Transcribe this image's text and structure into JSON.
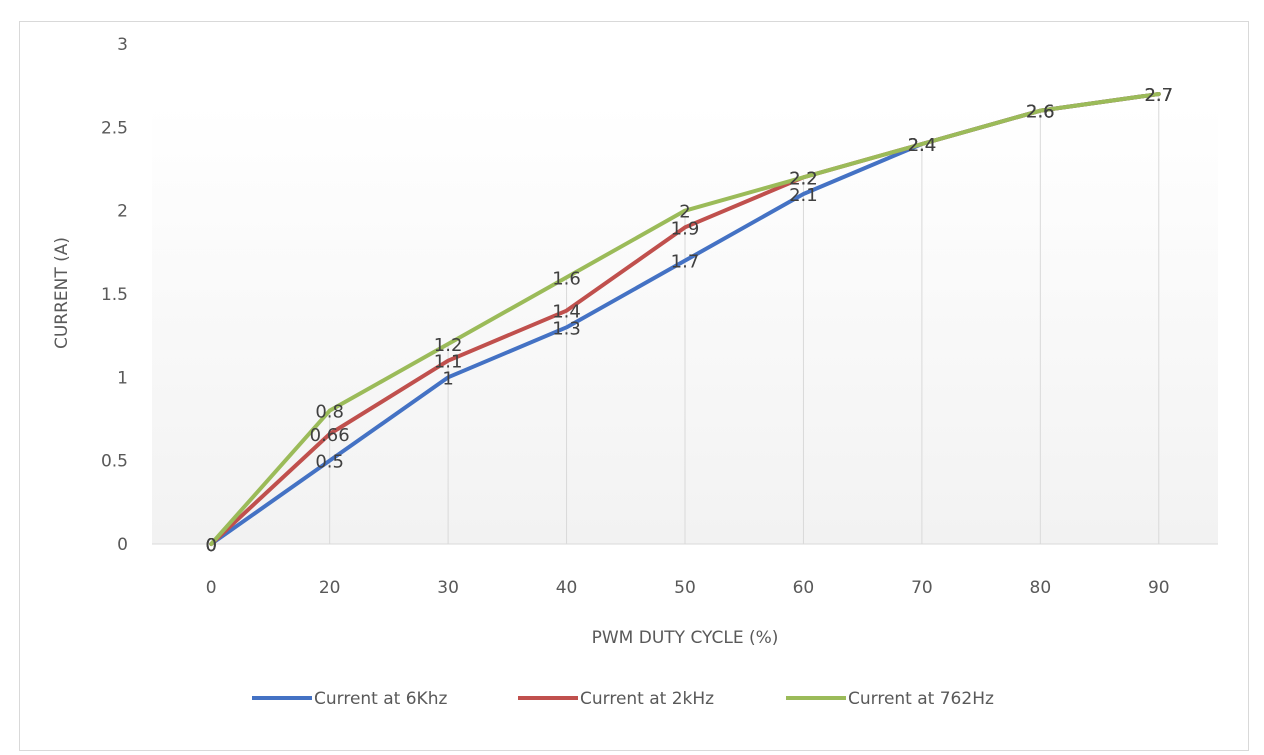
{
  "chart_data": {
    "type": "line",
    "title": "",
    "xlabel": "PWM DUTY CYCLE (%)",
    "ylabel": "CURRENT (A)",
    "categories": [
      "0",
      "20",
      "30",
      "40",
      "50",
      "60",
      "70",
      "80",
      "90"
    ],
    "ylim": [
      0,
      3
    ],
    "yticks": [
      "0",
      "0.5",
      "1",
      "1.5",
      "2",
      "2.5",
      "3"
    ],
    "grid": "vertical drop lines at each category",
    "legend_position": "bottom",
    "series": [
      {
        "name": "Current at 6Khz",
        "color": "#4472c4",
        "values": [
          0,
          0.5,
          1,
          1.3,
          1.7,
          2.1,
          2.4,
          2.6,
          2.7
        ],
        "labels": [
          "0",
          "0.5",
          "1",
          "1.3",
          "1.7",
          "2.1",
          "2.4",
          "2.6",
          "2.7"
        ]
      },
      {
        "name": "Current at 2kHz",
        "color": "#c0504d",
        "values": [
          0,
          0.66,
          1.1,
          1.4,
          1.9,
          2.2,
          2.4,
          2.6,
          2.7
        ],
        "labels": [
          "0",
          "0.66",
          "1.1",
          "1.4",
          "1.9",
          "2.2",
          "2.4",
          "2.6",
          "2.7"
        ]
      },
      {
        "name": "Current at 762Hz",
        "color": "#9bbb59",
        "values": [
          0,
          0.8,
          1.2,
          1.6,
          2,
          2.2,
          2.4,
          2.6,
          2.7
        ],
        "labels": [
          "0",
          "0.8",
          "1.2",
          "1.6",
          "2",
          "2.2",
          "2.4",
          "2.6",
          "2.7"
        ]
      }
    ]
  }
}
